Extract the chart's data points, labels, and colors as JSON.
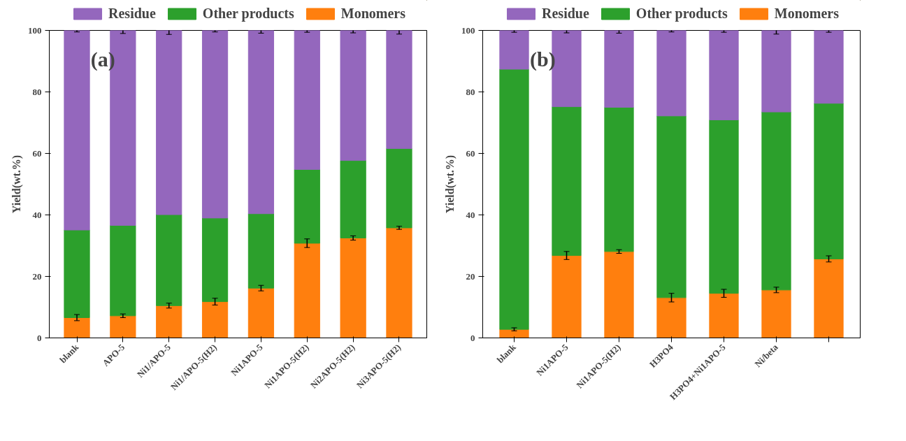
{
  "chart_data": [
    {
      "type": "bar",
      "stacked": true,
      "ylabel": "Yield(wt.%)",
      "annotations": [
        "(a)"
      ],
      "categories": [
        "blank",
        "APO-5",
        "Ni1/APO-5",
        "Ni1/APO-5(H2)",
        "Ni1APO-5",
        "Ni1APO-5(H2)",
        "Ni2APO-5(H2)",
        "Ni3APO-5(H2)"
      ],
      "ylim": [
        0,
        100
      ],
      "yticks": [
        0,
        20,
        40,
        60,
        80,
        100
      ],
      "grid": false,
      "legend": "top",
      "series": [
        {
          "name": "Monomers",
          "color": "#ff7f0e",
          "values": [
            6.6,
            7.2,
            10.5,
            11.8,
            16.2,
            30.8,
            32.5,
            35.8
          ],
          "errors": [
            1.0,
            0.6,
            0.8,
            1.1,
            0.9,
            1.4,
            0.7,
            0.5
          ]
        },
        {
          "name": "Other products",
          "color": "#2ca02c",
          "values": [
            28.5,
            29.4,
            29.6,
            27.2,
            24.2,
            24.0,
            25.2,
            25.8
          ]
        },
        {
          "name": "Residue",
          "color": "#9467bd",
          "values": [
            64.9,
            63.4,
            59.9,
            61.0,
            59.6,
            45.2,
            42.3,
            38.4
          ],
          "errors": [
            0.5,
            1.0,
            1.3,
            0.5,
            0.9,
            0.6,
            0.8,
            1.2
          ]
        }
      ]
    },
    {
      "type": "bar",
      "stacked": true,
      "ylabel": "Yield(wt.%)",
      "annotations": [
        "(b)"
      ],
      "categories": [
        "blank",
        "Ni1APO-5",
        "Ni1APO-5(H2)",
        "H3PO4",
        "H3PO4+Ni1APO-5",
        "Ni/beta",
        null
      ],
      "ylim": [
        0,
        100
      ],
      "yticks": [
        0,
        20,
        40,
        60,
        80,
        100
      ],
      "grid": false,
      "legend": "top",
      "series": [
        {
          "name": "Monomers",
          "color": "#ff7f0e",
          "values": [
            2.8,
            26.8,
            28.1,
            13.1,
            14.5,
            15.6,
            25.7
          ],
          "errors": [
            0.5,
            1.3,
            0.6,
            1.4,
            1.3,
            0.9,
            1.0
          ]
        },
        {
          "name": "Other products",
          "color": "#2ca02c",
          "values": [
            84.6,
            48.4,
            46.9,
            59.1,
            56.4,
            57.9,
            50.6
          ]
        },
        {
          "name": "Residue",
          "color": "#9467bd",
          "values": [
            12.6,
            24.8,
            25.0,
            27.8,
            29.1,
            26.5,
            23.7
          ],
          "errors": [
            0.6,
            0.8,
            0.9,
            0.5,
            0.6,
            1.2,
            0.6
          ]
        }
      ]
    }
  ]
}
